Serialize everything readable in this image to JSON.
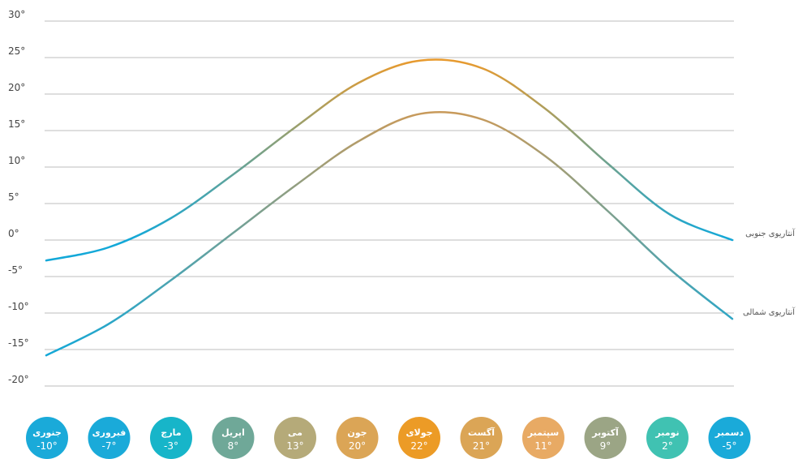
{
  "chart_data": {
    "type": "line",
    "xlabel": "",
    "ylabel": "",
    "ylim": [
      -20,
      30
    ],
    "yticks": [
      "30",
      "25",
      "20",
      "15",
      "10",
      "5",
      "0",
      "-5",
      "-10",
      "-15",
      "-20"
    ],
    "ytick_suffix": "°",
    "grid": true,
    "x_domain": [
      0,
      11
    ],
    "series": [
      {
        "name": "آنتاریوی جنوبی",
        "x": [
          0,
          1,
          2,
          3,
          4,
          5,
          6,
          7,
          8,
          9,
          10,
          11
        ],
        "values": [
          -2.8,
          -1.0,
          3.0,
          9.0,
          15.5,
          21.5,
          24.6,
          23.5,
          18.0,
          10.5,
          3.5,
          0.0
        ]
      },
      {
        "name": "آنتاریوی شمالی",
        "x": [
          0,
          1,
          2,
          3,
          4,
          5,
          6,
          7,
          8,
          9,
          10,
          11
        ],
        "values": [
          -15.8,
          -11.5,
          -5.5,
          1.0,
          7.5,
          13.5,
          17.3,
          16.5,
          11.5,
          4.0,
          -4.0,
          -10.8
        ]
      }
    ],
    "months": [
      {
        "name": "جنوری",
        "temp": "-10°",
        "color": "#1aaad9"
      },
      {
        "name": "فبروری",
        "temp": "-7°",
        "color": "#1aaad9"
      },
      {
        "name": "مارچ",
        "temp": "-3°",
        "color": "#17b5c9"
      },
      {
        "name": "اپریل",
        "temp": "8°",
        "color": "#6fa898"
      },
      {
        "name": "می",
        "temp": "13°",
        "color": "#b5aa79"
      },
      {
        "name": "جون",
        "temp": "20°",
        "color": "#dba556"
      },
      {
        "name": "جولای",
        "temp": "22°",
        "color": "#ec9b26"
      },
      {
        "name": "آگست",
        "temp": "21°",
        "color": "#dba556"
      },
      {
        "name": "سپتمبر",
        "temp": "11°",
        "color": "#e8aa64"
      },
      {
        "name": "آکتوبر",
        "temp": "9°",
        "color": "#9ba585"
      },
      {
        "name": "نومبر",
        "temp": "2°",
        "color": "#40c2b2"
      },
      {
        "name": "دسمبر",
        "temp": "-5°",
        "color": "#1aaad9"
      }
    ],
    "colors": {
      "cold": "#13a8d8",
      "warm": "#ea9a2c",
      "grid": "#bdbdbd"
    }
  }
}
